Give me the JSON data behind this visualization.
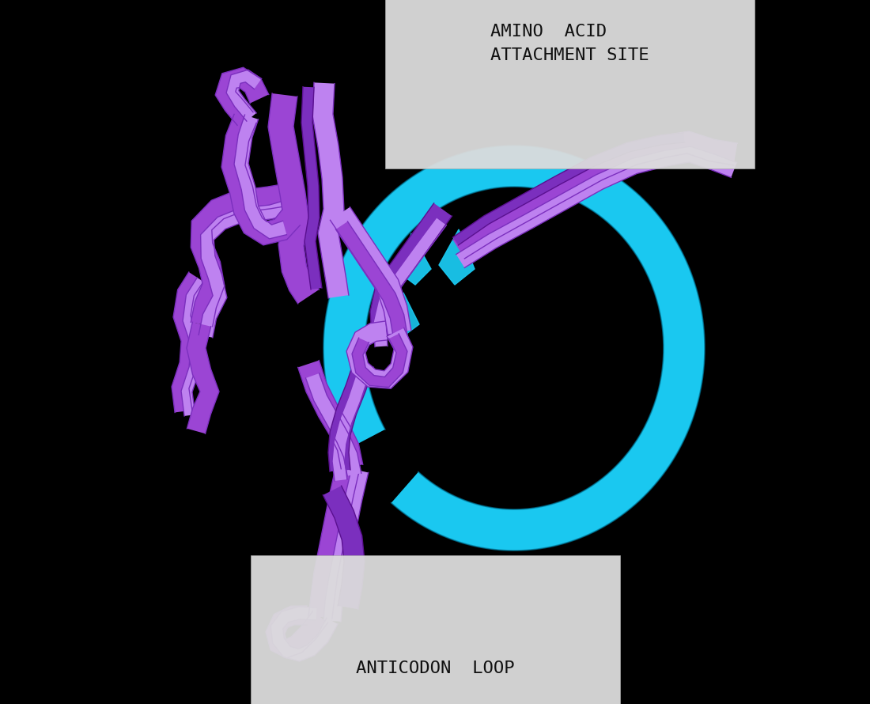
{
  "background_color": "#000000",
  "cyan_color": "#1AC8F0",
  "cyan_dark": "#0099CC",
  "purple_dark": "#7B2FBE",
  "purple_mid": "#9B45D4",
  "purple_light": "#BE82F0",
  "purple_pale": "#D4A0F5",
  "label_bg": "#DCDCDC",
  "label_text": "#111111",
  "label1_text": "AMINO  ACID\nATTACHMENT SITE",
  "label2_text": "ANTICODON  LOOP",
  "figsize": [
    11.0,
    8.9
  ],
  "dpi": 100
}
